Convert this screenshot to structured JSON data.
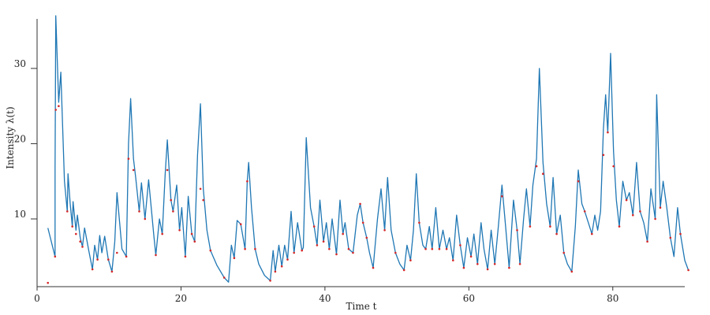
{
  "chart_data": {
    "type": "line",
    "xlabel": "Time t",
    "ylabel": "Intensity λ(t)",
    "xlim": [
      0,
      90
    ],
    "ylim": [
      1,
      37
    ],
    "x_ticks": [
      0,
      20,
      40,
      60,
      80
    ],
    "y_ticks": [
      10,
      20,
      30
    ],
    "grid": false,
    "colors": {
      "line": "#1f77b4",
      "events": "#d62728",
      "axis": "#333333"
    },
    "series": [
      {
        "style": "line",
        "points": [
          [
            1.5,
            8.8
          ],
          [
            2.5,
            5.0
          ],
          [
            2.5,
            16.5
          ],
          [
            2.6,
            37.0
          ],
          [
            3.0,
            25.5
          ],
          [
            3.3,
            29.5
          ],
          [
            3.8,
            15.0
          ],
          [
            4.2,
            11.0
          ],
          [
            4.3,
            16.0
          ],
          [
            4.6,
            12.0
          ],
          [
            4.9,
            9.0
          ],
          [
            5.0,
            12.3
          ],
          [
            5.4,
            8.5
          ],
          [
            5.6,
            10.5
          ],
          [
            6.0,
            7.5
          ],
          [
            6.3,
            6.3
          ],
          [
            6.6,
            8.8
          ],
          [
            7.2,
            5.7
          ],
          [
            7.7,
            3.3
          ],
          [
            8.0,
            6.5
          ],
          [
            8.4,
            4.6
          ],
          [
            8.7,
            7.8
          ],
          [
            9.0,
            5.5
          ],
          [
            9.4,
            7.7
          ],
          [
            9.9,
            4.6
          ],
          [
            10.4,
            3.0
          ],
          [
            10.8,
            7.0
          ],
          [
            11.1,
            13.5
          ],
          [
            11.8,
            6.0
          ],
          [
            12.4,
            5.0
          ],
          [
            12.7,
            20.0
          ],
          [
            13.0,
            26.0
          ],
          [
            13.4,
            18.0
          ],
          [
            13.7,
            15.5
          ],
          [
            14.2,
            11.0
          ],
          [
            14.5,
            14.8
          ],
          [
            15.0,
            10.0
          ],
          [
            15.5,
            15.2
          ],
          [
            16.2,
            8.0
          ],
          [
            16.5,
            5.2
          ],
          [
            17.0,
            10.0
          ],
          [
            17.4,
            8.0
          ],
          [
            17.8,
            16.0
          ],
          [
            18.1,
            20.5
          ],
          [
            18.6,
            12.5
          ],
          [
            18.9,
            11.0
          ],
          [
            19.4,
            14.5
          ],
          [
            19.8,
            8.5
          ],
          [
            20.1,
            11.5
          ],
          [
            20.6,
            5.0
          ],
          [
            21.0,
            13.0
          ],
          [
            21.5,
            8.0
          ],
          [
            21.9,
            7.0
          ],
          [
            22.3,
            18.5
          ],
          [
            22.7,
            25.3
          ],
          [
            23.1,
            14.0
          ],
          [
            23.6,
            8.5
          ],
          [
            24.1,
            5.8
          ],
          [
            25.0,
            3.8
          ],
          [
            26.0,
            2.2
          ],
          [
            26.6,
            1.6
          ],
          [
            27.0,
            6.5
          ],
          [
            27.4,
            4.8
          ],
          [
            27.8,
            9.8
          ],
          [
            28.3,
            9.3
          ],
          [
            28.9,
            6.0
          ],
          [
            29.2,
            15.0
          ],
          [
            29.4,
            17.5
          ],
          [
            29.8,
            11.5
          ],
          [
            30.3,
            6.0
          ],
          [
            30.8,
            4.0
          ],
          [
            31.6,
            2.5
          ],
          [
            32.4,
            1.8
          ],
          [
            32.8,
            5.8
          ],
          [
            33.1,
            3.0
          ],
          [
            33.6,
            6.5
          ],
          [
            34.0,
            3.7
          ],
          [
            34.4,
            6.5
          ],
          [
            34.8,
            4.6
          ],
          [
            35.3,
            11.0
          ],
          [
            35.7,
            5.5
          ],
          [
            36.2,
            9.5
          ],
          [
            36.8,
            5.8
          ],
          [
            37.0,
            6.2
          ],
          [
            37.4,
            20.8
          ],
          [
            38.0,
            11.5
          ],
          [
            38.5,
            9.0
          ],
          [
            38.9,
            6.5
          ],
          [
            39.3,
            12.5
          ],
          [
            39.8,
            7.0
          ],
          [
            40.2,
            9.5
          ],
          [
            40.6,
            6.0
          ],
          [
            41.0,
            10.0
          ],
          [
            41.6,
            5.3
          ],
          [
            42.1,
            12.5
          ],
          [
            42.5,
            8.0
          ],
          [
            42.8,
            9.5
          ],
          [
            43.3,
            6.0
          ],
          [
            43.9,
            5.5
          ],
          [
            44.5,
            10.5
          ],
          [
            44.9,
            12.0
          ],
          [
            45.3,
            9.5
          ],
          [
            45.8,
            7.5
          ],
          [
            46.2,
            5.5
          ],
          [
            46.7,
            3.5
          ],
          [
            47.3,
            10.0
          ],
          [
            47.8,
            14.0
          ],
          [
            48.3,
            8.5
          ],
          [
            48.7,
            15.5
          ],
          [
            49.2,
            8.5
          ],
          [
            49.8,
            5.5
          ],
          [
            50.4,
            4.0
          ],
          [
            51.0,
            3.2
          ],
          [
            51.4,
            6.5
          ],
          [
            51.9,
            4.5
          ],
          [
            52.3,
            8.5
          ],
          [
            52.7,
            16.0
          ],
          [
            53.1,
            9.5
          ],
          [
            53.6,
            6.5
          ],
          [
            54.0,
            6.0
          ],
          [
            54.5,
            9.0
          ],
          [
            54.9,
            6.0
          ],
          [
            55.4,
            11.5
          ],
          [
            55.9,
            6.0
          ],
          [
            56.4,
            8.5
          ],
          [
            56.9,
            6.0
          ],
          [
            57.3,
            7.5
          ],
          [
            57.8,
            4.5
          ],
          [
            58.3,
            10.5
          ],
          [
            58.8,
            6.5
          ],
          [
            59.3,
            3.5
          ],
          [
            59.8,
            7.5
          ],
          [
            60.3,
            5.0
          ],
          [
            60.7,
            8.0
          ],
          [
            61.2,
            4.0
          ],
          [
            61.7,
            9.5
          ],
          [
            62.1,
            6.0
          ],
          [
            62.6,
            3.3
          ],
          [
            63.1,
            8.5
          ],
          [
            63.6,
            4.0
          ],
          [
            64.1,
            9.0
          ],
          [
            64.6,
            14.5
          ],
          [
            65.1,
            9.0
          ],
          [
            65.6,
            3.5
          ],
          [
            66.2,
            12.5
          ],
          [
            66.7,
            8.5
          ],
          [
            67.1,
            4.0
          ],
          [
            67.6,
            10.0
          ],
          [
            68.0,
            14.0
          ],
          [
            68.5,
            9.0
          ],
          [
            68.9,
            14.5
          ],
          [
            69.4,
            18.0
          ],
          [
            69.8,
            30.0
          ],
          [
            70.3,
            17.5
          ],
          [
            70.8,
            12.0
          ],
          [
            71.3,
            9.0
          ],
          [
            71.7,
            15.5
          ],
          [
            72.2,
            8.0
          ],
          [
            72.7,
            10.5
          ],
          [
            73.2,
            5.5
          ],
          [
            73.7,
            4.0
          ],
          [
            74.3,
            3.0
          ],
          [
            74.8,
            9.0
          ],
          [
            75.2,
            16.5
          ],
          [
            75.7,
            12.0
          ],
          [
            76.1,
            11.0
          ],
          [
            76.6,
            9.5
          ],
          [
            77.1,
            8.0
          ],
          [
            77.5,
            10.5
          ],
          [
            77.9,
            8.5
          ],
          [
            78.3,
            11.0
          ],
          [
            78.7,
            22.0
          ],
          [
            79.0,
            26.5
          ],
          [
            79.3,
            21.5
          ],
          [
            79.7,
            32.0
          ],
          [
            80.1,
            19.0
          ],
          [
            80.5,
            12.5
          ],
          [
            80.9,
            9.0
          ],
          [
            81.4,
            15.0
          ],
          [
            81.9,
            12.5
          ],
          [
            82.3,
            13.5
          ],
          [
            82.8,
            10.5
          ],
          [
            83.3,
            17.5
          ],
          [
            83.8,
            11.0
          ],
          [
            84.3,
            9.5
          ],
          [
            84.8,
            7.0
          ],
          [
            85.3,
            14.0
          ],
          [
            85.9,
            10.0
          ],
          [
            86.1,
            26.5
          ],
          [
            86.6,
            11.5
          ],
          [
            87.0,
            15.0
          ],
          [
            87.5,
            11.5
          ],
          [
            88.0,
            7.5
          ],
          [
            88.5,
            5.0
          ],
          [
            89.0,
            11.5
          ],
          [
            89.4,
            8.0
          ],
          [
            90.0,
            4.5
          ],
          [
            90.5,
            3.2
          ]
        ]
      },
      {
        "style": "points",
        "points": [
          [
            1.5,
            1.5
          ],
          [
            2.5,
            5.0
          ],
          [
            2.6,
            24.5
          ],
          [
            3.0,
            25.0
          ],
          [
            4.2,
            11.0
          ],
          [
            4.9,
            9.0
          ],
          [
            5.4,
            8.0
          ],
          [
            6.0,
            7.0
          ],
          [
            6.3,
            6.3
          ],
          [
            7.7,
            3.3
          ],
          [
            8.4,
            4.6
          ],
          [
            9.9,
            4.6
          ],
          [
            10.4,
            3.0
          ],
          [
            11.1,
            5.5
          ],
          [
            12.4,
            5.0
          ],
          [
            12.7,
            18.0
          ],
          [
            13.4,
            16.5
          ],
          [
            14.2,
            11.0
          ],
          [
            15.0,
            10.0
          ],
          [
            16.5,
            5.2
          ],
          [
            17.4,
            8.0
          ],
          [
            18.1,
            16.5
          ],
          [
            18.6,
            12.5
          ],
          [
            18.9,
            11.0
          ],
          [
            19.8,
            8.5
          ],
          [
            20.6,
            5.0
          ],
          [
            21.5,
            8.0
          ],
          [
            21.9,
            7.0
          ],
          [
            22.7,
            14.0
          ],
          [
            23.1,
            12.5
          ],
          [
            24.1,
            5.8
          ],
          [
            26.0,
            2.2
          ],
          [
            27.4,
            4.8
          ],
          [
            28.3,
            9.3
          ],
          [
            28.9,
            6.0
          ],
          [
            29.2,
            15.0
          ],
          [
            30.3,
            6.0
          ],
          [
            32.4,
            1.8
          ],
          [
            33.1,
            3.0
          ],
          [
            34.0,
            3.7
          ],
          [
            34.8,
            4.6
          ],
          [
            35.7,
            5.5
          ],
          [
            36.8,
            5.8
          ],
          [
            38.5,
            9.0
          ],
          [
            38.9,
            6.5
          ],
          [
            39.8,
            7.0
          ],
          [
            40.6,
            6.0
          ],
          [
            41.6,
            5.3
          ],
          [
            42.5,
            8.0
          ],
          [
            43.3,
            6.0
          ],
          [
            43.9,
            5.5
          ],
          [
            44.9,
            12.0
          ],
          [
            45.3,
            9.5
          ],
          [
            45.8,
            7.5
          ],
          [
            46.7,
            3.5
          ],
          [
            48.3,
            8.5
          ],
          [
            49.8,
            5.5
          ],
          [
            51.0,
            3.2
          ],
          [
            51.9,
            4.5
          ],
          [
            53.1,
            9.5
          ],
          [
            54.0,
            6.0
          ],
          [
            54.9,
            6.0
          ],
          [
            55.9,
            6.0
          ],
          [
            56.9,
            6.0
          ],
          [
            57.8,
            4.5
          ],
          [
            58.8,
            6.5
          ],
          [
            59.3,
            3.5
          ],
          [
            60.3,
            5.0
          ],
          [
            61.2,
            4.0
          ],
          [
            62.6,
            3.3
          ],
          [
            63.6,
            4.0
          ],
          [
            64.6,
            13.0
          ],
          [
            65.6,
            3.5
          ],
          [
            66.7,
            8.5
          ],
          [
            67.1,
            4.0
          ],
          [
            68.5,
            9.0
          ],
          [
            69.4,
            17.0
          ],
          [
            70.3,
            16.0
          ],
          [
            71.3,
            9.0
          ],
          [
            72.2,
            8.0
          ],
          [
            73.2,
            5.5
          ],
          [
            74.3,
            3.0
          ],
          [
            75.2,
            15.0
          ],
          [
            76.1,
            11.0
          ],
          [
            77.1,
            8.0
          ],
          [
            78.7,
            18.5
          ],
          [
            79.3,
            21.5
          ],
          [
            80.1,
            17.0
          ],
          [
            80.9,
            9.0
          ],
          [
            81.9,
            12.5
          ],
          [
            82.8,
            10.5
          ],
          [
            83.8,
            11.0
          ],
          [
            84.8,
            7.0
          ],
          [
            85.9,
            10.0
          ],
          [
            86.6,
            11.5
          ],
          [
            88.0,
            7.5
          ],
          [
            89.4,
            8.0
          ],
          [
            90.5,
            3.2
          ]
        ]
      }
    ]
  }
}
